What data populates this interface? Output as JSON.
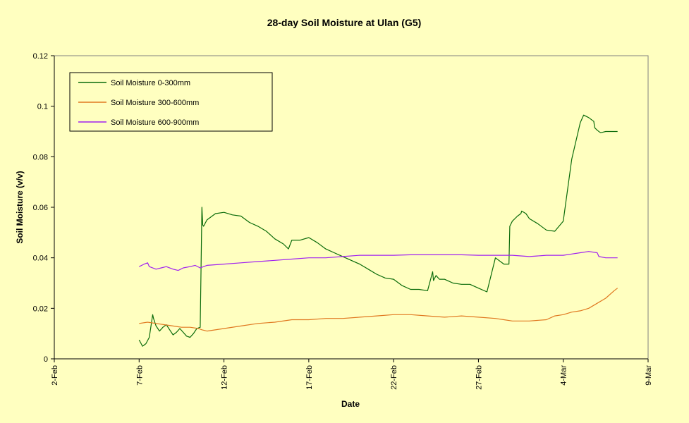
{
  "chart_data": {
    "type": "line",
    "title": "28-day Soil Moisture  at Ulan (G5)",
    "xlabel": "Date",
    "ylabel": "Soil Moisture (v/v)",
    "ylim": [
      0,
      0.12
    ],
    "yticks": [
      "0",
      "0.02",
      "0.04",
      "0.06",
      "0.08",
      "0.1",
      "0.12"
    ],
    "xlim_days": [
      0,
      35
    ],
    "xticks": [
      {
        "label": "2-Feb",
        "day": 0
      },
      {
        "label": "7-Feb",
        "day": 5
      },
      {
        "label": "12-Feb",
        "day": 10
      },
      {
        "label": "17-Feb",
        "day": 15
      },
      {
        "label": "22-Feb",
        "day": 20
      },
      {
        "label": "27-Feb",
        "day": 25
      },
      {
        "label": "4-Mar",
        "day": 30
      },
      {
        "label": "9-Mar",
        "day": 35
      }
    ],
    "grid": false,
    "legend_position": "top-left",
    "background_color": "#ffffc0",
    "series": [
      {
        "name": "Soil Moisture 0-300mm",
        "color": "#0a6b0a",
        "x": [
          5.0,
          5.2,
          5.4,
          5.6,
          5.8,
          5.85,
          6.0,
          6.2,
          6.4,
          6.6,
          6.8,
          7.0,
          7.2,
          7.4,
          7.6,
          7.8,
          8.0,
          8.2,
          8.4,
          8.6,
          8.7,
          8.75,
          8.8,
          9.0,
          9.5,
          10.0,
          10.5,
          11.0,
          11.5,
          12.0,
          12.5,
          13.0,
          13.5,
          13.8,
          14.0,
          14.5,
          15.0,
          15.5,
          16.0,
          16.5,
          17.0,
          17.5,
          18.0,
          18.5,
          19.0,
          19.5,
          20.0,
          20.5,
          21.0,
          21.5,
          22.0,
          22.3,
          22.35,
          22.5,
          22.7,
          23.0,
          23.5,
          24.0,
          24.5,
          25.0,
          25.5,
          26.0,
          26.5,
          26.8,
          26.85,
          27.0,
          27.3,
          27.5,
          27.55,
          27.8,
          28.0,
          28.5,
          29.0,
          29.5,
          30.0,
          30.5,
          31.0,
          31.2,
          31.5,
          31.8,
          31.85,
          32.0,
          32.2,
          32.5,
          32.8,
          33.0,
          33.2
        ],
        "values": [
          0.0075,
          0.005,
          0.006,
          0.0085,
          0.0175,
          0.016,
          0.013,
          0.011,
          0.0125,
          0.0135,
          0.0115,
          0.0095,
          0.0105,
          0.012,
          0.0105,
          0.009,
          0.0085,
          0.01,
          0.012,
          0.0125,
          0.06,
          0.053,
          0.0525,
          0.055,
          0.0575,
          0.058,
          0.057,
          0.0565,
          0.054,
          0.0525,
          0.0505,
          0.0475,
          0.0455,
          0.0435,
          0.047,
          0.047,
          0.048,
          0.046,
          0.0435,
          0.042,
          0.0405,
          0.039,
          0.0375,
          0.0355,
          0.0335,
          0.032,
          0.0315,
          0.029,
          0.0275,
          0.0275,
          0.027,
          0.0345,
          0.031,
          0.033,
          0.0315,
          0.0315,
          0.03,
          0.0295,
          0.0295,
          0.028,
          0.0265,
          0.04,
          0.0375,
          0.0375,
          0.0525,
          0.0545,
          0.0565,
          0.0575,
          0.0585,
          0.0575,
          0.0555,
          0.0535,
          0.051,
          0.0505,
          0.0545,
          0.079,
          0.0935,
          0.0965,
          0.0955,
          0.094,
          0.0915,
          0.0905,
          0.0895,
          0.09,
          0.09,
          0.09,
          0.09
        ]
      },
      {
        "name": "Soil Moisture 300-600mm",
        "color": "#e07820",
        "x": [
          5.0,
          5.5,
          6.0,
          6.5,
          7.0,
          7.5,
          8.0,
          8.5,
          8.7,
          9.0,
          10.0,
          11.0,
          12.0,
          13.0,
          14.0,
          15.0,
          16.0,
          17.0,
          18.0,
          19.0,
          20.0,
          21.0,
          22.0,
          23.0,
          24.0,
          25.0,
          26.0,
          26.5,
          27.0,
          28.0,
          29.0,
          29.5,
          30.0,
          30.5,
          31.0,
          31.5,
          32.0,
          32.5,
          33.0,
          33.2
        ],
        "values": [
          0.014,
          0.0145,
          0.014,
          0.0135,
          0.013,
          0.0125,
          0.0125,
          0.012,
          0.0115,
          0.011,
          0.012,
          0.013,
          0.014,
          0.0145,
          0.0155,
          0.0155,
          0.016,
          0.016,
          0.0165,
          0.017,
          0.0175,
          0.0175,
          0.017,
          0.0165,
          0.017,
          0.0165,
          0.016,
          0.0155,
          0.015,
          0.015,
          0.0155,
          0.017,
          0.0175,
          0.0185,
          0.019,
          0.02,
          0.022,
          0.024,
          0.027,
          0.028
        ]
      },
      {
        "name": "Soil Moisture 600-900mm",
        "color": "#a020f0",
        "x": [
          5.0,
          5.3,
          5.5,
          5.6,
          6.0,
          6.3,
          6.6,
          7.0,
          7.3,
          7.6,
          8.0,
          8.3,
          8.6,
          8.8,
          9.0,
          10.0,
          11.0,
          12.0,
          13.0,
          14.0,
          15.0,
          16.0,
          17.0,
          18.0,
          19.0,
          20.0,
          21.0,
          22.0,
          23.0,
          24.0,
          25.0,
          26.0,
          27.0,
          28.0,
          29.0,
          30.0,
          30.5,
          31.0,
          31.5,
          32.0,
          32.1,
          32.5,
          33.0,
          33.2
        ],
        "values": [
          0.0365,
          0.0375,
          0.038,
          0.0365,
          0.0355,
          0.036,
          0.0365,
          0.0355,
          0.035,
          0.036,
          0.0365,
          0.037,
          0.036,
          0.0365,
          0.037,
          0.0375,
          0.038,
          0.0385,
          0.039,
          0.0395,
          0.04,
          0.04,
          0.0405,
          0.041,
          0.041,
          0.041,
          0.0412,
          0.0412,
          0.0412,
          0.0412,
          0.041,
          0.041,
          0.041,
          0.0405,
          0.041,
          0.041,
          0.0415,
          0.042,
          0.0425,
          0.042,
          0.0405,
          0.04,
          0.04,
          0.04
        ]
      }
    ]
  }
}
